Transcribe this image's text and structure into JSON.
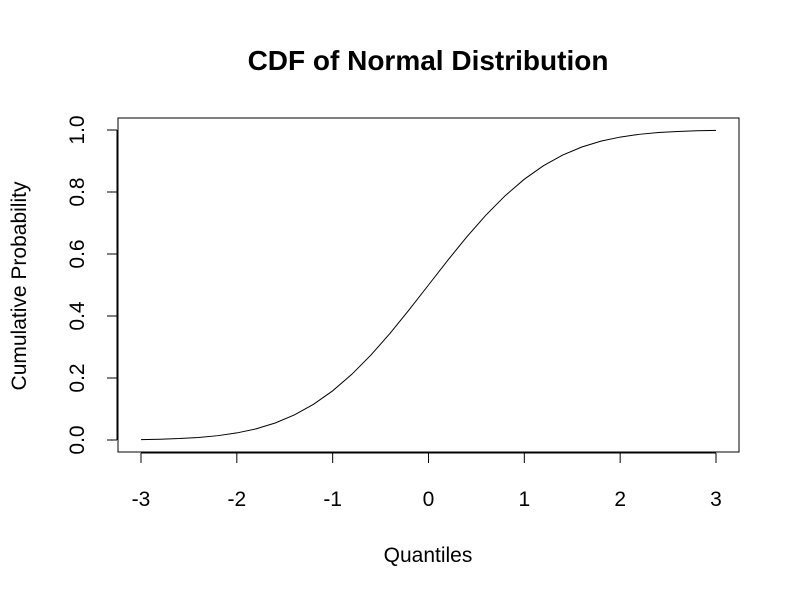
{
  "chart_data": {
    "type": "line",
    "title": "CDF of Normal Distribution",
    "xlabel": "Quantiles",
    "ylabel": "Cumulative Probability",
    "xlim": [
      -3,
      3
    ],
    "ylim": [
      0,
      1
    ],
    "x_ticks": [
      -3,
      -2,
      -1,
      0,
      1,
      2,
      3
    ],
    "x_tick_labels": [
      "-3",
      "-2",
      "-1",
      "0",
      "1",
      "2",
      "3"
    ],
    "y_ticks": [
      0,
      0.2,
      0.4,
      0.6,
      0.8,
      1
    ],
    "y_tick_labels": [
      "0.0",
      "0.2",
      "0.4",
      "0.6",
      "0.8",
      "1.0"
    ],
    "grid": false,
    "legend": "none",
    "line_color": "#000000",
    "series": [
      {
        "x": [
          -3,
          -2.8,
          -2.6,
          -2.4,
          -2.2,
          -2,
          -1.8,
          -1.6,
          -1.4,
          -1.2,
          -1,
          -0.8,
          -0.6,
          -0.4,
          -0.2,
          0,
          0.2,
          0.4,
          0.6,
          0.8,
          1,
          1.2,
          1.4,
          1.6,
          1.8,
          2,
          2.2,
          2.4,
          2.6,
          2.8,
          3
        ],
        "y": [
          0.0013,
          0.0026,
          0.0047,
          0.0082,
          0.0139,
          0.0228,
          0.0359,
          0.0548,
          0.0808,
          0.1151,
          0.1587,
          0.2119,
          0.2743,
          0.3446,
          0.4207,
          0.5,
          0.5793,
          0.6554,
          0.7257,
          0.7881,
          0.8413,
          0.8849,
          0.9192,
          0.9452,
          0.9641,
          0.9772,
          0.9861,
          0.9918,
          0.9953,
          0.9974,
          0.9987
        ]
      }
    ]
  }
}
